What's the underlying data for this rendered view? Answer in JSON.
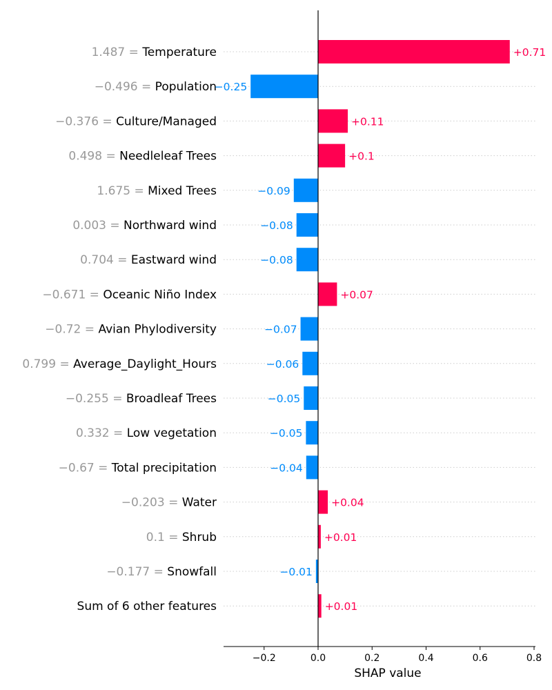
{
  "colors": {
    "positive": "#ff0051",
    "negative": "#008bfb",
    "feature_value": "#999999",
    "feature_name": "#000000",
    "gridline": "#cccccc",
    "axis": "#000000"
  },
  "chart_data": {
    "type": "bar",
    "orientation": "horizontal",
    "xlabel": "SHAP value",
    "xlim": [
      -0.35,
      0.8
    ],
    "xticks": [
      {
        "value": -0.2,
        "label": "−0.2"
      },
      {
        "value": 0.0,
        "label": "0.0"
      },
      {
        "value": 0.2,
        "label": "0.2"
      },
      {
        "value": 0.4,
        "label": "0.4"
      },
      {
        "value": 0.6,
        "label": "0.6"
      },
      {
        "value": 0.8,
        "label": "0.8"
      }
    ],
    "grid": "dotted horizontal per row",
    "bars": [
      {
        "feature_value": "1.487 = ",
        "feature": "Temperature",
        "value": 0.71,
        "label": "+0.71"
      },
      {
        "feature_value": "−0.496 = ",
        "feature": "Population",
        "value": -0.25,
        "label": "−0.25"
      },
      {
        "feature_value": "−0.376 = ",
        "feature": "Culture/Managed",
        "value": 0.11,
        "label": "+0.11"
      },
      {
        "feature_value": "0.498 = ",
        "feature": "Needleleaf Trees",
        "value": 0.1,
        "label": "+0.1"
      },
      {
        "feature_value": "1.675 = ",
        "feature": "Mixed Trees",
        "value": -0.09,
        "label": "−0.09"
      },
      {
        "feature_value": "0.003 = ",
        "feature": "Northward wind",
        "value": -0.08,
        "label": "−0.08"
      },
      {
        "feature_value": "0.704 = ",
        "feature": "Eastward wind",
        "value": -0.08,
        "label": "−0.08"
      },
      {
        "feature_value": "−0.671 = ",
        "feature": "Oceanic Niño Index",
        "value": 0.07,
        "label": "+0.07"
      },
      {
        "feature_value": "−0.72 = ",
        "feature": "Avian Phylodiversity",
        "value": -0.065,
        "label": "−0.07"
      },
      {
        "feature_value": "0.799 = ",
        "feature": "Average_Daylight_Hours",
        "value": -0.058,
        "label": "−0.06"
      },
      {
        "feature_value": "−0.255 = ",
        "feature": "Broadleaf Trees",
        "value": -0.053,
        "label": "−0.05"
      },
      {
        "feature_value": "0.332 = ",
        "feature": "Low vegetation",
        "value": -0.045,
        "label": "−0.05"
      },
      {
        "feature_value": "−0.67 = ",
        "feature": "Total precipitation",
        "value": -0.044,
        "label": "−0.04"
      },
      {
        "feature_value": "−0.203 = ",
        "feature": "Water",
        "value": 0.036,
        "label": "+0.04"
      },
      {
        "feature_value": "0.1 = ",
        "feature": "Shrub",
        "value": 0.01,
        "label": "+0.01"
      },
      {
        "feature_value": "−0.177 = ",
        "feature": "Snowfall",
        "value": -0.008,
        "label": "−0.01"
      },
      {
        "feature_value": "",
        "feature": "Sum of 6 other features",
        "value": 0.012,
        "label": "+0.01"
      }
    ]
  }
}
